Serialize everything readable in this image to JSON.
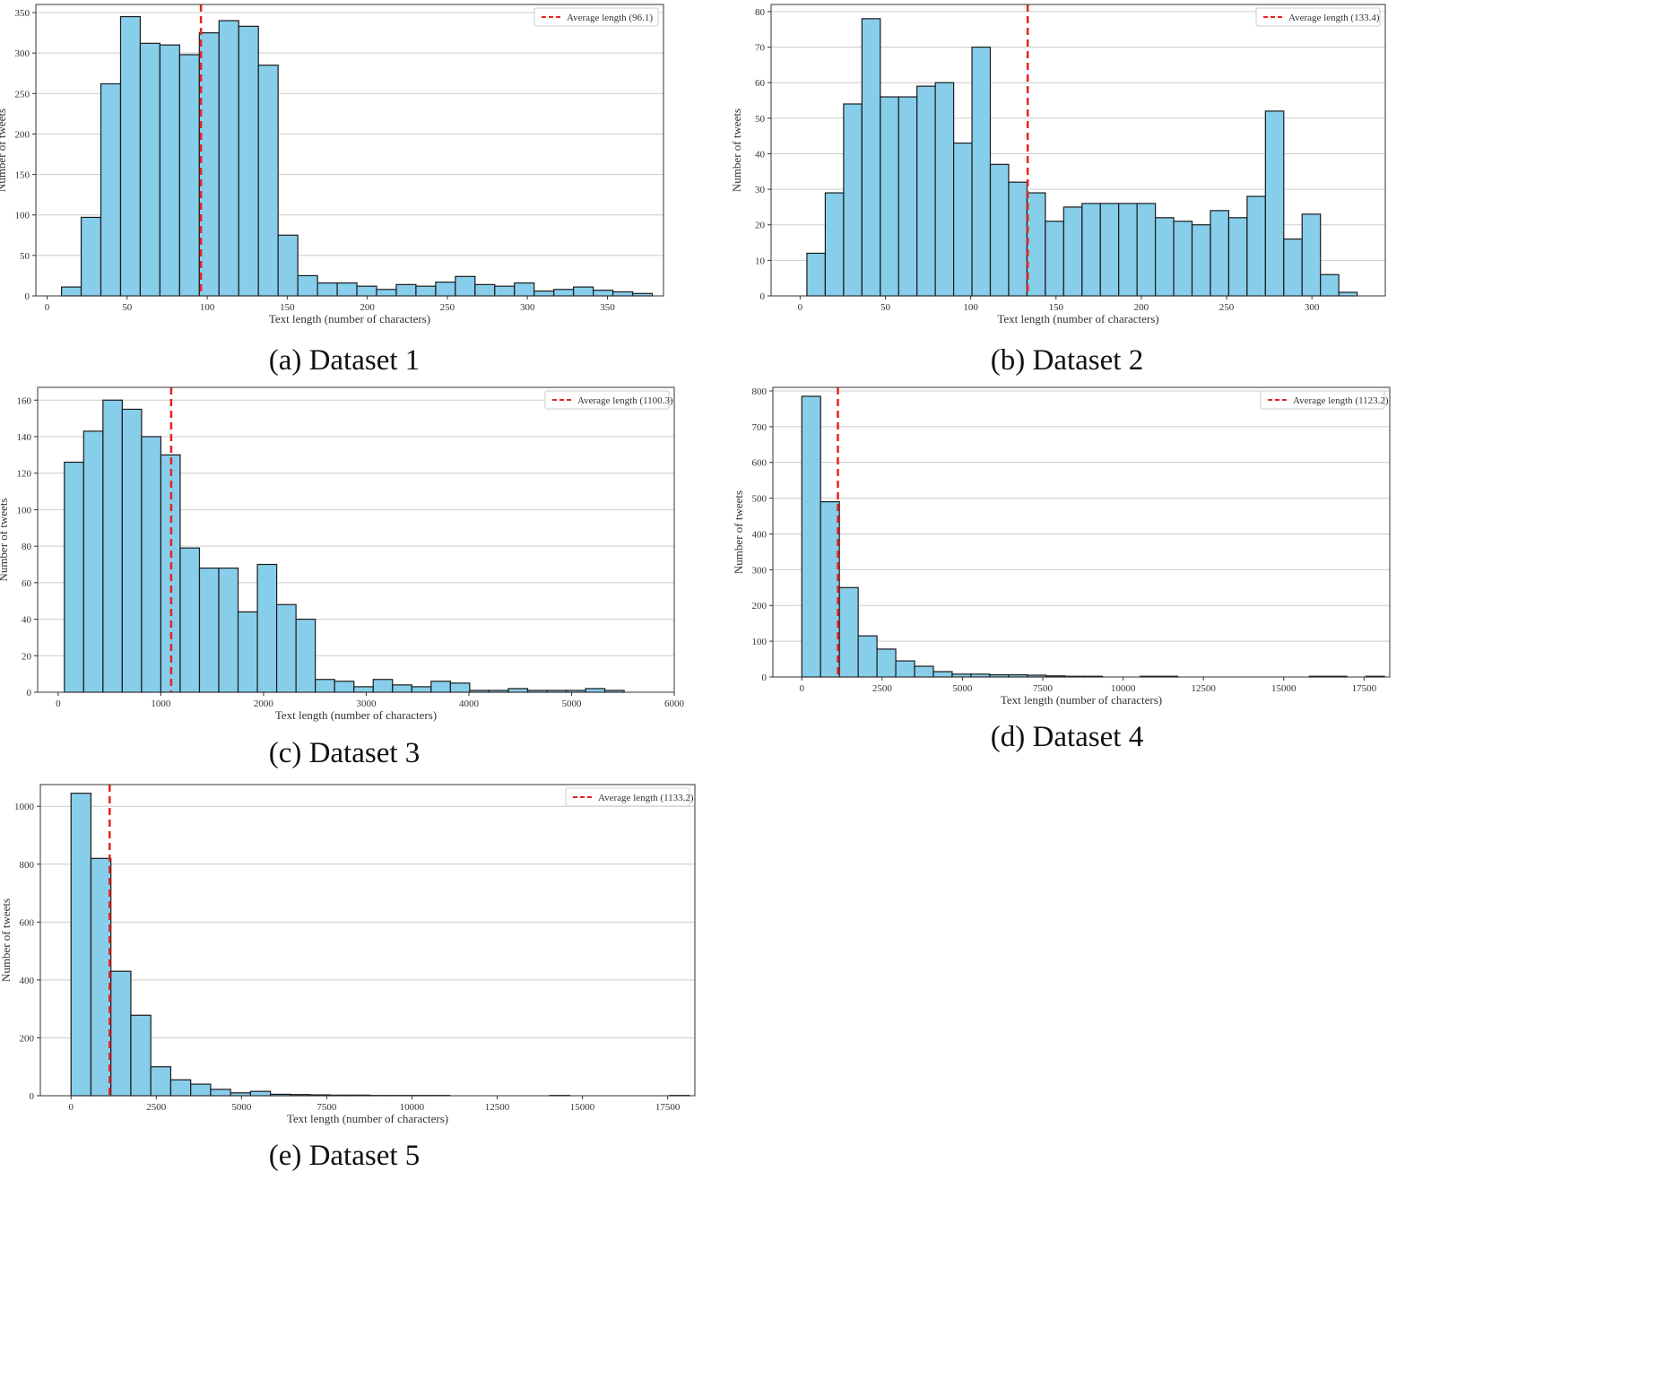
{
  "colors": {
    "bar_fill": "#87ceeb",
    "bar_edge": "#1a1a1a",
    "avg_line": "#e8221f",
    "grid": "#cccccc",
    "frame": "#333333"
  },
  "chart_data": [
    {
      "type": "bar",
      "caption": "(a) Dataset 1",
      "title": "",
      "xlabel": "Text length (number of characters)",
      "ylabel": "Number of tweets",
      "bin_start": 9,
      "bin_width": 12.3,
      "values": [
        11,
        97,
        262,
        345,
        312,
        310,
        298,
        325,
        340,
        333,
        285,
        75,
        25,
        16,
        16,
        12,
        8,
        14,
        12,
        17,
        24,
        14,
        12,
        16,
        6,
        8,
        11,
        7,
        5,
        3
      ],
      "xlim": [
        -7,
        385
      ],
      "ylim": [
        0,
        360
      ],
      "xticks": [
        0,
        50,
        100,
        150,
        200,
        250,
        300,
        350
      ],
      "yticks": [
        0,
        50,
        100,
        150,
        200,
        250,
        300,
        350
      ],
      "average": {
        "value": 96.1,
        "label": "Average length (96.1)"
      },
      "grid": "y",
      "legend": "top-right"
    },
    {
      "type": "bar",
      "caption": "(b) Dataset 2",
      "title": "",
      "xlabel": "Text length (number of characters)",
      "ylabel": "Number of tweets",
      "bin_start": 4,
      "bin_width": 10.75,
      "values": [
        12,
        29,
        54,
        78,
        56,
        56,
        59,
        60,
        43,
        70,
        37,
        32,
        29,
        21,
        25,
        26,
        26,
        26,
        26,
        22,
        21,
        20,
        24,
        22,
        28,
        52,
        16,
        23,
        6,
        1
      ],
      "xlim": [
        -17,
        343
      ],
      "ylim": [
        0,
        82
      ],
      "xticks": [
        0,
        50,
        100,
        150,
        200,
        250,
        300
      ],
      "yticks": [
        0,
        10,
        20,
        30,
        40,
        50,
        60,
        70,
        80
      ],
      "average": {
        "value": 133.4,
        "label": "Average length (133.4)"
      },
      "grid": "y",
      "legend": "top-right"
    },
    {
      "type": "bar",
      "caption": "(c) Dataset 3",
      "title": "",
      "xlabel": "Text length (number of characters)",
      "ylabel": "Number of tweets",
      "bin_start": 60,
      "bin_width": 188,
      "values": [
        126,
        143,
        160,
        155,
        140,
        130,
        79,
        68,
        68,
        44,
        70,
        48,
        40,
        7,
        6,
        3,
        7,
        4,
        3,
        6,
        5,
        1,
        1,
        2,
        1,
        1,
        1,
        2,
        1
      ],
      "xlim": [
        -200,
        6000
      ],
      "ylim": [
        0,
        167
      ],
      "xticks": [
        0,
        1000,
        2000,
        3000,
        4000,
        5000,
        6000
      ],
      "yticks": [
        0,
        20,
        40,
        60,
        80,
        100,
        120,
        140,
        160
      ],
      "average": {
        "value": 1100.3,
        "label": "Average length (1100.3)"
      },
      "grid": "y",
      "legend": "top-right"
    },
    {
      "type": "bar",
      "caption": "(d) Dataset 4",
      "title": "",
      "xlabel": "Text length (number of characters)",
      "ylabel": "Number of tweets",
      "bin_start": 0,
      "bin_width": 585,
      "values": [
        785,
        490,
        250,
        115,
        78,
        45,
        30,
        15,
        8,
        8,
        6,
        6,
        5,
        3,
        2,
        2,
        0,
        0,
        2,
        2,
        0,
        0,
        0,
        0,
        0,
        0,
        0,
        2,
        2,
        0,
        2
      ],
      "xlim": [
        -900,
        18300
      ],
      "ylim": [
        0,
        810
      ],
      "xticks": [
        0,
        2500,
        5000,
        7500,
        10000,
        12500,
        15000,
        17500
      ],
      "yticks": [
        0,
        100,
        200,
        300,
        400,
        500,
        600,
        700,
        800
      ],
      "average": {
        "value": 1123.2,
        "label": "Average length (1123.2)"
      },
      "grid": "y",
      "legend": "top-right"
    },
    {
      "type": "bar",
      "caption": "(e) Dataset 5",
      "title": "",
      "xlabel": "Text length (number of characters)",
      "ylabel": "Number of tweets",
      "bin_start": 0,
      "bin_width": 585,
      "values": [
        1045,
        820,
        430,
        278,
        100,
        55,
        40,
        22,
        10,
        15,
        5,
        4,
        3,
        2,
        2,
        1,
        1,
        1,
        1,
        0,
        0,
        0,
        0,
        0,
        1,
        0,
        0,
        0,
        0,
        0,
        1
      ],
      "xlim": [
        -900,
        18300
      ],
      "ylim": [
        0,
        1075
      ],
      "xticks": [
        0,
        2500,
        5000,
        7500,
        10000,
        12500,
        15000,
        17500
      ],
      "yticks": [
        0,
        200,
        400,
        600,
        800,
        1000
      ],
      "average": {
        "value": 1133.2,
        "label": "Average length (1133.2)"
      },
      "grid": "y",
      "legend": "top-right"
    }
  ]
}
